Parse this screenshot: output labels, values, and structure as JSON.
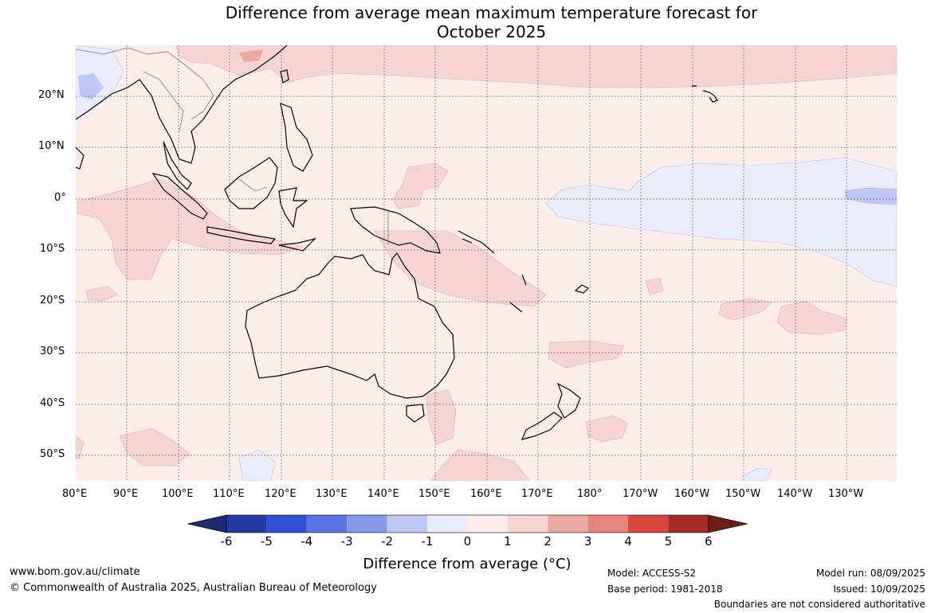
{
  "title": {
    "line1": "Difference from average mean maximum temperature forecast for",
    "line2": "October 2025"
  },
  "axes": {
    "lat_labels": [
      "20°N",
      "10°N",
      "0°",
      "10°S",
      "20°S",
      "30°S",
      "40°S",
      "50°S"
    ],
    "lon_labels": [
      "80°E",
      "90°E",
      "100°E",
      "110°E",
      "120°E",
      "130°E",
      "140°E",
      "150°E",
      "160°E",
      "170°E",
      "180°",
      "170°W",
      "160°W",
      "150°W",
      "140°W",
      "130°W"
    ]
  },
  "colorbar": {
    "ticks": [
      "-6",
      "-5",
      "-4",
      "-3",
      "-2",
      "-1",
      "0",
      "1",
      "2",
      "3",
      "4",
      "5",
      "6"
    ],
    "colors": [
      "#243a9f",
      "#2f4fd6",
      "#5b74e4",
      "#8598ea",
      "#bfc8f3",
      "#e9ecfb",
      "#fcecea",
      "#f6d4d2",
      "#ecaaa4",
      "#e4857d",
      "#d9463c",
      "#a72b25"
    ],
    "low_extend": "#1c2a72",
    "high_extend": "#6e1d19",
    "label": "Difference from average (°C)"
  },
  "footer": {
    "site": "www.bom.gov.au/climate",
    "copyright": "© Commonwealth of Australia 2025, Australian Bureau of Meteorology",
    "model": "Model: ACCESS-S2",
    "base_period": "Base period: 1981-2018",
    "model_run": "Model run: 08/09/2025",
    "issued": "Issued: 10/09/2025",
    "disclaimer": "Boundaries are not considered authoritative"
  },
  "map": {
    "background_color": "#fcecea",
    "warm_color": "#f6d4d2",
    "cool_color": "#e9ecfb",
    "cool2_color": "#bfc8f3",
    "warm2_color": "#ecaaa4"
  }
}
